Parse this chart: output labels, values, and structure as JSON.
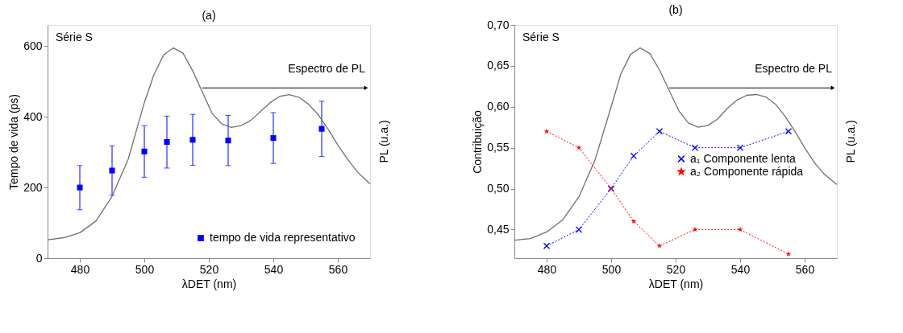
{
  "chart_data": [
    {
      "type": "scatter",
      "title": "(a)",
      "xlabel": "λDET (nm)",
      "ylabel": "Tempo de vida (ps)",
      "y2label": "PL (u.a.)",
      "xlim": [
        470,
        570
      ],
      "xticks": [
        480,
        500,
        520,
        540,
        560
      ],
      "ylim": [
        0,
        660
      ],
      "yticks": [
        0,
        200,
        400,
        600
      ],
      "grid": false,
      "legend": "bottom right",
      "annotations": [
        "Série S",
        "Espectro de PL"
      ],
      "series": [
        {
          "name": "tempo de vida representativo",
          "color": "#0000ff",
          "marker": "square",
          "x": [
            480,
            490,
            500,
            507,
            515,
            526,
            540,
            555
          ],
          "values": [
            200,
            248,
            302,
            329,
            335,
            333,
            340,
            366
          ],
          "errors": [
            [
              137,
              262
            ],
            [
              178,
              318
            ],
            [
              229,
              375
            ],
            [
              255,
              402
            ],
            [
              263,
              407
            ],
            [
              262,
              404
            ],
            [
              268,
              412
            ],
            [
              288,
              444
            ]
          ]
        },
        {
          "type": "line",
          "color": "#707070",
          "marker": "none",
          "line_style": "solid",
          "x": [
            470,
            475,
            480,
            485,
            490,
            495,
            500,
            503,
            506,
            509,
            512,
            515,
            518,
            521,
            524,
            527,
            530,
            533,
            536,
            539,
            542,
            545,
            548,
            551,
            554,
            557,
            560,
            563,
            566,
            570
          ],
          "values": [
            52,
            58,
            72,
            105,
            175,
            280,
            440,
            520,
            575,
            595,
            580,
            530,
            470,
            410,
            380,
            370,
            375,
            390,
            415,
            440,
            458,
            463,
            455,
            435,
            405,
            365,
            320,
            280,
            245,
            210
          ]
        }
      ]
    },
    {
      "type": "line",
      "title": "(b)",
      "xlabel": "λDET (nm)",
      "ylabel": "Contribuição",
      "y2label": "PL (u.a.)",
      "xlim": [
        470,
        570
      ],
      "xticks": [
        480,
        500,
        520,
        540,
        560
      ],
      "ylim": [
        0.415,
        0.7
      ],
      "yticks": [
        {
          "value": 0.45,
          "label": "0,45"
        },
        {
          "value": 0.5,
          "label": "0,50"
        },
        {
          "value": 0.55,
          "label": "0,55"
        },
        {
          "value": 0.6,
          "label": "0,60"
        },
        {
          "value": 0.65,
          "label": "0,65"
        },
        {
          "value": 0.7,
          "label": "0,70"
        }
      ],
      "grid": false,
      "legend": "right",
      "annotations": [
        "Série S",
        "Espectro de PL"
      ],
      "series": [
        {
          "type": "line",
          "color": "#707070",
          "marker": "none",
          "line_style": "solid",
          "x": [
            470,
            475,
            480,
            485,
            490,
            495,
            500,
            503,
            506,
            509,
            512,
            515,
            518,
            521,
            524,
            527,
            530,
            533,
            536,
            539,
            542,
            545,
            548,
            551,
            554,
            557,
            560,
            563,
            566,
            570
          ],
          "values": [
            0.437,
            0.439,
            0.447,
            0.462,
            0.49,
            0.535,
            0.6,
            0.64,
            0.664,
            0.672,
            0.665,
            0.645,
            0.62,
            0.595,
            0.58,
            0.575,
            0.577,
            0.585,
            0.598,
            0.608,
            0.614,
            0.615,
            0.612,
            0.603,
            0.588,
            0.57,
            0.55,
            0.532,
            0.518,
            0.505
          ]
        },
        {
          "name": "a₁ Componente lenta",
          "color": "#0000ff",
          "marker": "cross",
          "line_style": "dotted",
          "x": [
            480,
            490,
            500,
            507,
            515,
            526,
            540,
            555
          ],
          "values": [
            0.43,
            0.45,
            0.5,
            0.54,
            0.57,
            0.55,
            0.55,
            0.57
          ]
        },
        {
          "name": "a₂ Componente rápida",
          "color": "#ff0000",
          "marker": "star",
          "line_style": "dotted",
          "x": [
            480,
            490,
            500,
            507,
            515,
            526,
            540,
            555
          ],
          "values": [
            0.57,
            0.55,
            0.5,
            0.46,
            0.43,
            0.45,
            0.45,
            0.42
          ]
        }
      ]
    }
  ]
}
